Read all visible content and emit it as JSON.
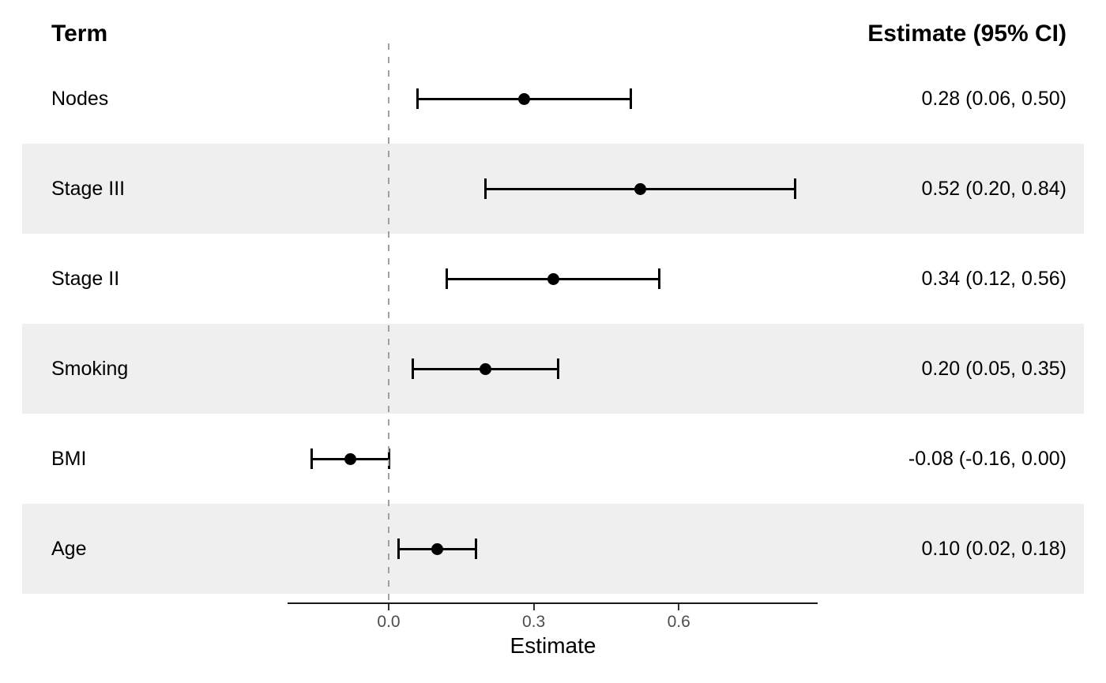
{
  "columns": {
    "term_header": "Term",
    "estimate_header": "Estimate (95% CI)"
  },
  "axis": {
    "title": "Estimate",
    "tick_labels": [
      "0.0",
      "0.3",
      "0.6"
    ],
    "tick_values": [
      0.0,
      0.3,
      0.6
    ]
  },
  "colors": {
    "stripe": "#efefef",
    "zero_reference_line": "#a0a0a0",
    "ci_line": "#000000",
    "estimate_marker": "#000000",
    "axis_line": "#1a1a1a",
    "tick_text": "#4d4d4d",
    "label_text": "#000000"
  },
  "chart_data": {
    "type": "scatter",
    "subtype": "forest-plot",
    "title": "",
    "xlabel": "Estimate",
    "ylabel": "Term",
    "xlim": [
      -0.21,
      0.88
    ],
    "x_ticks": [
      0.0,
      0.3,
      0.6
    ],
    "x_tick_labels": [
      "0.0",
      "0.3",
      "0.6"
    ],
    "zero_reference_line": 0.0,
    "grid": false,
    "legend_position": "none",
    "rows": [
      {
        "term": "Nodes",
        "estimate": 0.28,
        "ci_low": 0.06,
        "ci_high": 0.5,
        "label": "0.28 (0.06, 0.50)",
        "striped": false
      },
      {
        "term": "Stage III",
        "estimate": 0.52,
        "ci_low": 0.2,
        "ci_high": 0.84,
        "label": "0.52 (0.20, 0.84)",
        "striped": true
      },
      {
        "term": "Stage II",
        "estimate": 0.34,
        "ci_low": 0.12,
        "ci_high": 0.56,
        "label": "0.34 (0.12, 0.56)",
        "striped": false
      },
      {
        "term": "Smoking",
        "estimate": 0.2,
        "ci_low": 0.05,
        "ci_high": 0.35,
        "label": "0.20 (0.05, 0.35)",
        "striped": true
      },
      {
        "term": "BMI",
        "estimate": -0.08,
        "ci_low": -0.16,
        "ci_high": 0.0,
        "label": "-0.08 (-0.16, 0.00)",
        "striped": false
      },
      {
        "term": "Age",
        "estimate": 0.1,
        "ci_low": 0.02,
        "ci_high": 0.18,
        "label": "0.10 (0.02, 0.18)",
        "striped": true
      }
    ]
  }
}
